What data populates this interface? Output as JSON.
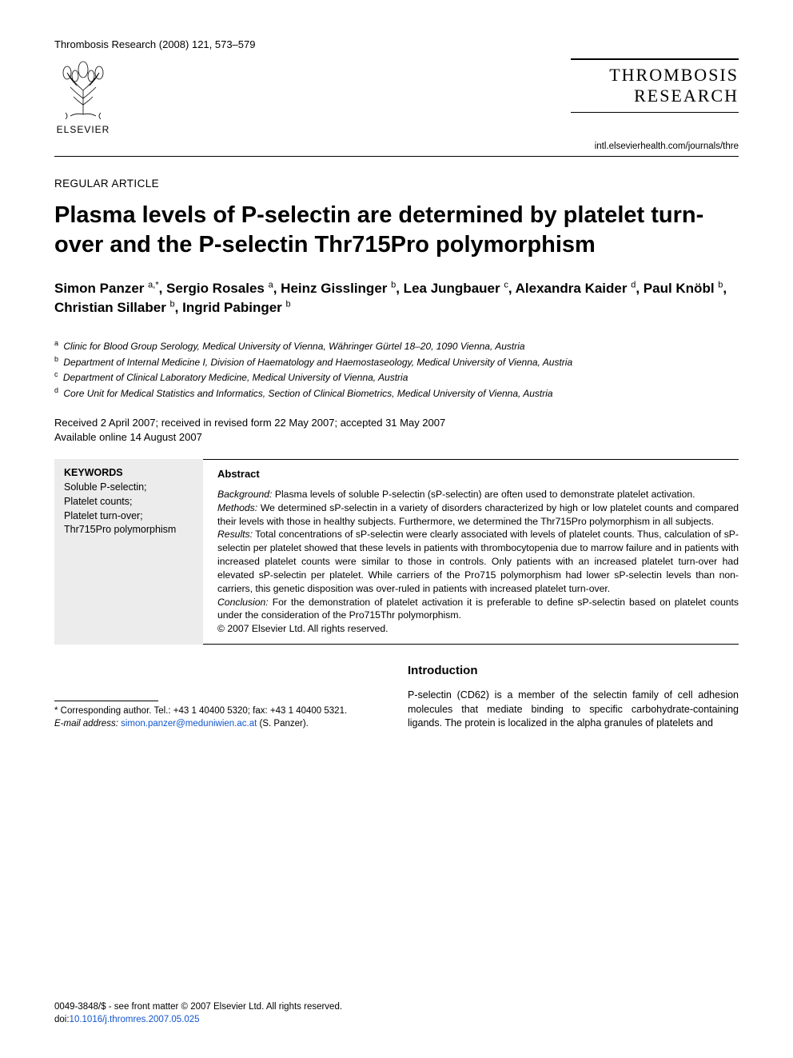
{
  "header": {
    "journal_ref": "Thrombosis Research (2008) 121, 573–579",
    "publisher_name": "ELSEVIER",
    "journal_title_line1": "THROMBOSIS",
    "journal_title_line2": "RESEARCH",
    "journal_url": "intl.elsevierhealth.com/journals/thre"
  },
  "article": {
    "type": "REGULAR ARTICLE",
    "title": "Plasma levels of P-selectin are determined by platelet turn-over and the P-selectin Thr715Pro polymorphism",
    "authors_html": "Simon Panzer <sup>a,*</sup>, Sergio Rosales <sup>a</sup>, Heinz Gisslinger <sup>b</sup>, Lea Jungbauer <sup>c</sup>, Alexandra Kaider <sup>d</sup>, Paul Knöbl <sup>b</sup>, Christian Sillaber <sup>b</sup>, Ingrid Pabinger <sup>b</sup>",
    "affiliations": {
      "a": "Clinic for Blood Group Serology, Medical University of Vienna, Währinger Gürtel 18–20, 1090 Vienna, Austria",
      "b": "Department of Internal Medicine I, Division of Haematology and Haemostaseology, Medical University of Vienna, Austria",
      "c": "Department of Clinical Laboratory Medicine, Medical University of Vienna, Austria",
      "d": "Core Unit for Medical Statistics and Informatics, Section of Clinical Biometrics, Medical University of Vienna, Austria"
    },
    "dates_line1": "Received 2 April 2007; received in revised form 22 May 2007; accepted 31 May 2007",
    "dates_line2": "Available online 14 August 2007"
  },
  "keywords": {
    "heading": "KEYWORDS",
    "items": "Soluble P-selectin;\nPlatelet counts;\nPlatelet turn-over;\nThr715Pro polymorphism"
  },
  "abstract": {
    "heading": "Abstract",
    "background_label": "Background:",
    "background": "Plasma levels of soluble P-selectin (sP-selectin) are often used to demonstrate platelet activation.",
    "methods_label": "Methods:",
    "methods": "We determined sP-selectin in a variety of disorders characterized by high or low platelet counts and compared their levels with those in healthy subjects. Furthermore, we determined the Thr715Pro polymorphism in all subjects.",
    "results_label": "Results:",
    "results": "Total concentrations of sP-selectin were clearly associated with levels of platelet counts. Thus, calculation of sP-selectin per platelet showed that these levels in patients with thrombocytopenia due to marrow failure and in patients with increased platelet counts were similar to those in controls. Only patients with an increased platelet turn-over had elevated sP-selectin per platelet. While carriers of the Pro715 polymorphism had lower sP-selectin levels than non-carriers, this genetic disposition was over-ruled in patients with increased platelet turn-over.",
    "conclusion_label": "Conclusion:",
    "conclusion": "For the demonstration of platelet activation it is preferable to define sP-selectin based on platelet counts under the consideration of the Pro715Thr polymorphism.",
    "copyright": "© 2007 Elsevier Ltd. All rights reserved."
  },
  "intro": {
    "heading": "Introduction",
    "text": "P-selectin (CD62) is a member of the selectin family of cell adhesion molecules that mediate binding to specific carbohydrate-containing ligands. The protein is localized in the alpha granules of platelets and"
  },
  "footnote": {
    "corresponding": "* Corresponding author. Tel.: +43 1 40400 5320; fax: +43 1 40400 5321.",
    "email_label": "E-mail address:",
    "email": "simon.panzer@meduniwien.ac.at",
    "email_suffix": "(S. Panzer)."
  },
  "bottom": {
    "issn_line": "0049-3848/$ - see front matter © 2007 Elsevier Ltd. All rights reserved.",
    "doi_label": "doi:",
    "doi": "10.1016/j.thromres.2007.05.025"
  },
  "colors": {
    "text": "#000000",
    "background": "#ffffff",
    "keywords_bg": "#ececec",
    "link": "#1155cc"
  }
}
